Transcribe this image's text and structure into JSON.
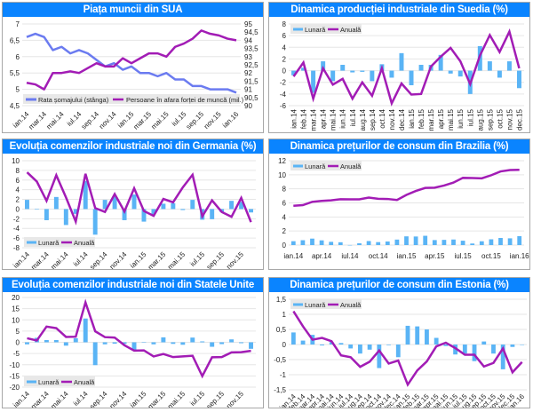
{
  "colors": {
    "title_bg": "#0a84ff",
    "bar": "#5ab4f5",
    "line_purple": "#a21cb5",
    "line_blue": "#6b7bf0",
    "grid": "#e6e6e6",
    "legend_bg": "#e8e8e8"
  },
  "chart_data": [
    {
      "id": "sua",
      "type": "line",
      "title": "Piața muncii din SUA",
      "x": [
        "ian.14",
        "feb.14",
        "mar.14",
        "apr.14",
        "mai.14",
        "iun.14",
        "iul.14",
        "aug.14",
        "sep.14",
        "oct.14",
        "nov.14",
        "dec.14",
        "ian.15",
        "feb.15",
        "mar.15",
        "apr.15",
        "mai.15",
        "iun.15",
        "iul.15",
        "aug.15",
        "sep.15",
        "oct.15",
        "nov.15",
        "dec.15",
        "ian.16"
      ],
      "xtick_labels": [
        "ian.14",
        "mar.14",
        "mai.14",
        "iul.14",
        "sep.14",
        "nov.14",
        "ian.15",
        "mar.15",
        "mai.15",
        "iul.15",
        "sep.15",
        "nov.15",
        "ian.16"
      ],
      "series": [
        {
          "name": "Rata șomajului (stânga)",
          "axis": "left",
          "color": "#6b7bf0",
          "values": [
            6.6,
            6.7,
            6.6,
            6.2,
            6.3,
            6.1,
            6.2,
            6.1,
            5.9,
            5.7,
            5.8,
            5.6,
            5.7,
            5.5,
            5.5,
            5.4,
            5.5,
            5.3,
            5.3,
            5.1,
            5.1,
            5.0,
            5.0,
            5.0,
            4.9
          ]
        },
        {
          "name": "Persoane în afara forței de muncă (mil.)",
          "axis": "right",
          "color": "#a21cb5",
          "values": [
            91.4,
            91.3,
            91.0,
            92.0,
            92.0,
            92.1,
            92.0,
            92.3,
            92.6,
            92.4,
            92.4,
            92.9,
            92.6,
            92.9,
            93.2,
            93.2,
            93.0,
            93.6,
            93.8,
            94.1,
            94.6,
            94.4,
            94.3,
            94.1,
            94.0
          ]
        }
      ],
      "ylim_left": [
        4.5,
        7
      ],
      "yticks_left": [
        "7",
        "6,5",
        "6",
        "5,5",
        "5",
        "4,5"
      ],
      "ylim_right": [
        90,
        95
      ],
      "yticks_right": [
        "95",
        "94,5",
        "94",
        "93,5",
        "93",
        "92,5",
        "92",
        "91,5",
        "91",
        "90,5",
        "90"
      ],
      "legend": [
        "Rata șomajului (stânga)",
        "Persoane în afara forței de muncă (mil.)"
      ],
      "legend_position": "bottom"
    },
    {
      "id": "suedia",
      "type": "bar+line",
      "title": "Dinamica producției industriale din Suedia (%)",
      "x": [
        "ian.14",
        "feb.14",
        "mar.14",
        "apr.14",
        "mai.14",
        "iun.14",
        "iul.14",
        "aug.14",
        "sep.14",
        "oct.14",
        "nov.14",
        "dec.14",
        "ian.15",
        "feb.15",
        "mar.15",
        "apr.15",
        "mai.15",
        "iun.15",
        "iul.15",
        "aug.15",
        "sep.15",
        "oct.15",
        "nov.15",
        "dec.15"
      ],
      "xtick_labels": [
        "ian.14",
        "feb.14",
        "mar.14",
        "apr.14",
        "mai.14",
        "iun.14",
        "iul.14",
        "aug.14",
        "sep.14",
        "oct.14",
        "nov.14",
        "dec.14",
        "ian.15",
        "feb.15",
        "mar.15",
        "apr.15",
        "mai.15",
        "iun.15",
        "iul.15",
        "aug.15",
        "sep.15",
        "oct.15",
        "nov.15",
        "dec.15"
      ],
      "series": [
        {
          "name": "Lunară",
          "kind": "bar",
          "values": [
            -0.8,
            0.5,
            -3.8,
            1.6,
            -1.8,
            1.0,
            -0.3,
            -0.2,
            -1.8,
            1.1,
            -1.2,
            3.0,
            -2.5,
            1.0,
            1.0,
            2.7,
            -0.5,
            -1.0,
            -4.0,
            4.2,
            1.6,
            -1.2,
            1.6,
            -3.0
          ]
        },
        {
          "name": "Anuală",
          "kind": "line",
          "values": [
            -1.0,
            1.4,
            -4.8,
            0.4,
            -2.4,
            -1.4,
            -4.8,
            -2.0,
            -4.3,
            0.4,
            -5.6,
            -2.2,
            -4.1,
            -4.0,
            0.7,
            2.4,
            3.9,
            1.6,
            -2.3,
            2.6,
            6.1,
            3.2,
            6.7,
            0.4
          ]
        }
      ],
      "ylim": [
        -6,
        8
      ],
      "yticks": [
        "8",
        "6",
        "4",
        "2",
        "0",
        "-2",
        "-4",
        "-6"
      ],
      "legend": [
        "Lunară",
        "Anuală"
      ],
      "legend_position": "top-left"
    },
    {
      "id": "germania",
      "type": "bar+line",
      "title": "Evoluția comenzilor industriale noi din Germania (%)",
      "x": [
        "ian.14",
        "feb.14",
        "mar.14",
        "apr.14",
        "mai.14",
        "iun.14",
        "iul.14",
        "aug.14",
        "sep.14",
        "oct.14",
        "nov.14",
        "dec.14",
        "ian.15",
        "feb.15",
        "mar.15",
        "apr.15",
        "mai.15",
        "iun.15",
        "iul.15",
        "aug.15",
        "sep.15",
        "oct.15",
        "nov.15",
        "dec.15"
      ],
      "xtick_labels": [
        "ian.14",
        "mar.14",
        "mai.14",
        "iul.14",
        "sep.14",
        "nov.14",
        "ian.15",
        "mar.15",
        "mai.15",
        "iul.15",
        "sep.15",
        "nov.15"
      ],
      "series": [
        {
          "name": "Lunară",
          "kind": "bar",
          "values": [
            1.9,
            -0.1,
            -2.3,
            2.5,
            -3.3,
            -1.0,
            5.8,
            -5.3,
            1.9,
            2.6,
            -2.3,
            3.0,
            -2.6,
            -1.1,
            1.1,
            1.2,
            -0.2,
            1.9,
            -2.2,
            -2.1,
            -0.6,
            1.7,
            1.5,
            -0.7
          ]
        },
        {
          "name": "Anuală",
          "kind": "line",
          "values": [
            7.6,
            5.7,
            1.7,
            7.0,
            2.4,
            -2.6,
            7.3,
            0.2,
            -0.6,
            3.1,
            -0.5,
            4.3,
            -0.4,
            -1.4,
            2.1,
            1.4,
            4.5,
            7.1,
            -1.5,
            1.8,
            -0.6,
            -1.6,
            2.3,
            -2.7
          ]
        }
      ],
      "ylim": [
        -8,
        10
      ],
      "yticks": [
        "10",
        "8",
        "6",
        "4",
        "2",
        "0",
        "-2",
        "-4",
        "-6",
        "-8"
      ],
      "legend": [
        "Lunară",
        "Anuală"
      ],
      "legend_position": "bottom-left"
    },
    {
      "id": "brazilia",
      "type": "bar+line",
      "title": "Dinamica prețurilor de consum din Brazilia (%)",
      "x": [
        "ian.14",
        "feb.14",
        "mar.14",
        "apr.14",
        "mai.14",
        "iun.14",
        "iul.14",
        "aug.14",
        "sep.14",
        "oct.14",
        "nov.14",
        "dec.14",
        "ian.15",
        "feb.15",
        "mar.15",
        "apr.15",
        "mai.15",
        "iun.15",
        "iul.15",
        "aug.15",
        "sep.15",
        "oct.15",
        "nov.15",
        "dec.15",
        "ian.16"
      ],
      "xtick_labels": [
        "ian.14",
        "apr.14",
        "iul.14",
        "oct.14",
        "ian.15",
        "apr.15",
        "iul.15",
        "oct.15",
        "ian.16"
      ],
      "series": [
        {
          "name": "Lunară",
          "kind": "bar",
          "values": [
            0.55,
            0.69,
            0.92,
            0.67,
            0.46,
            0.4,
            0.01,
            0.25,
            0.57,
            0.42,
            0.51,
            0.78,
            1.24,
            1.22,
            1.32,
            0.71,
            0.74,
            0.79,
            0.62,
            0.22,
            0.54,
            0.82,
            1.01,
            0.96,
            1.27
          ]
        },
        {
          "name": "Anuală",
          "kind": "line",
          "values": [
            5.59,
            5.68,
            6.15,
            6.28,
            6.37,
            6.52,
            6.5,
            6.51,
            6.75,
            6.59,
            6.56,
            6.41,
            7.14,
            7.7,
            8.13,
            8.17,
            8.47,
            8.89,
            9.56,
            9.53,
            9.49,
            9.93,
            10.48,
            10.67,
            10.71
          ]
        }
      ],
      "ylim": [
        0,
        12
      ],
      "yticks": [
        "12",
        "10",
        "8",
        "6",
        "4",
        "2",
        "0"
      ],
      "legend": [
        "Lunară",
        "Anuală"
      ],
      "legend_position": "top-left"
    },
    {
      "id": "sua_comenzi",
      "type": "bar+line",
      "title": "Evoluția comenzilor industriale noi din Statele Unite (%)",
      "x": [
        "ian.14",
        "feb.14",
        "mar.14",
        "apr.14",
        "mai.14",
        "iun.14",
        "iul.14",
        "aug.14",
        "sep.14",
        "oct.14",
        "nov.14",
        "dec.14",
        "ian.15",
        "feb.15",
        "mar.15",
        "apr.15",
        "mai.15",
        "iun.15",
        "iul.15",
        "aug.15",
        "sep.15",
        "oct.15",
        "nov.15",
        "dec.15"
      ],
      "xtick_labels": [
        "ian.14",
        "mar.14",
        "mai.14",
        "iul.14",
        "sep.14",
        "nov.14",
        "ian.15",
        "mar.15",
        "mai.15",
        "iul.15",
        "sep.15",
        "nov.15"
      ],
      "series": [
        {
          "name": "Lunară",
          "kind": "bar",
          "values": [
            -0.9,
            2.0,
            1.0,
            1.0,
            -1.5,
            1.8,
            10.6,
            -10.2,
            -0.9,
            -0.6,
            -0.7,
            -3.4,
            -0.2,
            -0.9,
            2.2,
            -0.7,
            -1.1,
            2.1,
            0.4,
            -2.0,
            -0.8,
            1.3,
            -0.4,
            -2.9
          ]
        },
        {
          "name": "Anuală",
          "kind": "line",
          "values": [
            1.8,
            0.8,
            7.0,
            6.3,
            2.4,
            2.5,
            17.8,
            4.9,
            2.3,
            2.1,
            -1.3,
            -3.7,
            -3.6,
            -6.3,
            -5.2,
            -6.6,
            -6.3,
            -6.0,
            -15.1,
            -6.7,
            -6.6,
            -4.5,
            -4.4,
            -3.8
          ]
        }
      ],
      "ylim": [
        -20,
        20
      ],
      "yticks": [
        "20",
        "15",
        "10",
        "5",
        "0",
        "-5",
        "-10",
        "-15",
        "-20"
      ],
      "legend": [
        "Lunară",
        "Anuală"
      ],
      "legend_position": "bottom-left"
    },
    {
      "id": "estonia",
      "type": "bar+line",
      "title": "Dinamica prețurilor de consum din Estonia (%)",
      "x": [
        "ian.14",
        "feb.14",
        "mar.14",
        "apr.14",
        "mai.14",
        "iun.14",
        "iul.14",
        "aug.14",
        "sep.14",
        "oct.14",
        "nov.14",
        "dec.14",
        "ian.15",
        "feb.15",
        "mar.15",
        "apr.15",
        "mai.15",
        "iun.15",
        "iul.15",
        "aug.15",
        "sep.15",
        "oct.15",
        "nov.15",
        "dec.15",
        "ian.16"
      ],
      "xtick_labels": [
        "ian.14",
        "feb.14",
        "mar.14",
        "apr.14",
        "mai.14",
        "iun.14",
        "iul.14",
        "aug.14",
        "sep.14",
        "oct.14",
        "nov.14",
        "dec.14",
        "ian.15",
        "feb.15",
        "mar.15",
        "apr.15",
        "mai.15",
        "iun.15",
        "iul.15",
        "aug.15",
        "sep.15",
        "oct.15",
        "nov.15",
        "dec.15",
        "ian.16"
      ],
      "series": [
        {
          "name": "Lunară",
          "kind": "bar",
          "values": [
            0.4,
            0.13,
            0.32,
            -0.03,
            0.08,
            0.05,
            -0.13,
            -0.3,
            -0.17,
            -0.78,
            -0.02,
            -0.42,
            0.62,
            0.6,
            0.5,
            0.22,
            -0.05,
            -0.33,
            -0.3,
            -0.55,
            0.1,
            -0.3,
            -0.82,
            -0.08,
            0.0
          ]
        },
        {
          "name": "Anuală",
          "kind": "line",
          "values": [
            1.1,
            0.6,
            0.16,
            0.22,
            0.11,
            -0.36,
            -0.42,
            -0.74,
            -0.57,
            -0.2,
            -0.63,
            -0.53,
            -1.33,
            -0.86,
            -0.56,
            -0.06,
            0.06,
            -0.12,
            -0.34,
            -0.34,
            -0.73,
            -0.61,
            -0.13,
            -0.92,
            -0.58
          ]
        }
      ],
      "ylim": [
        -1.5,
        1.5
      ],
      "yticks": [
        "1,5",
        "1",
        "0,5",
        "0",
        "-0,5",
        "-1",
        "-1,5"
      ],
      "legend": [
        "Lunară",
        "Anuală"
      ],
      "legend_position": "top-left"
    }
  ]
}
